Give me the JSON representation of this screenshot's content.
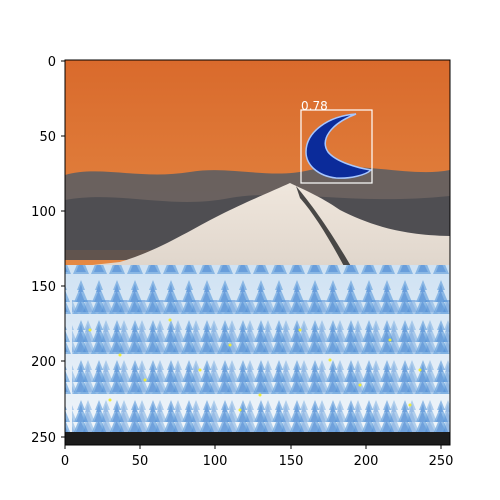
{
  "figure": {
    "x_axis": {
      "ticks": [
        "0",
        "50",
        "100",
        "150",
        "200",
        "250"
      ]
    },
    "y_axis": {
      "ticks": [
        "0",
        "50",
        "100",
        "150",
        "200",
        "250"
      ]
    },
    "detection": {
      "score_label": "0.78",
      "box_color": "#ffffff"
    }
  },
  "colors": {
    "sky_top": "#d96a2c",
    "sky_mid": "#e58a45",
    "sky_low": "#b07a59",
    "clouds": "#5a5b60",
    "mountain": "#e7ddd2",
    "mountain_shadow": "#2c2c2c",
    "forest_light": "#d7e8f5",
    "forest_blue": "#4b8fd8",
    "forest_yellow": "#ecec3a",
    "ground": "#1c1c1c",
    "moon_blue": "#0b2b9a"
  }
}
